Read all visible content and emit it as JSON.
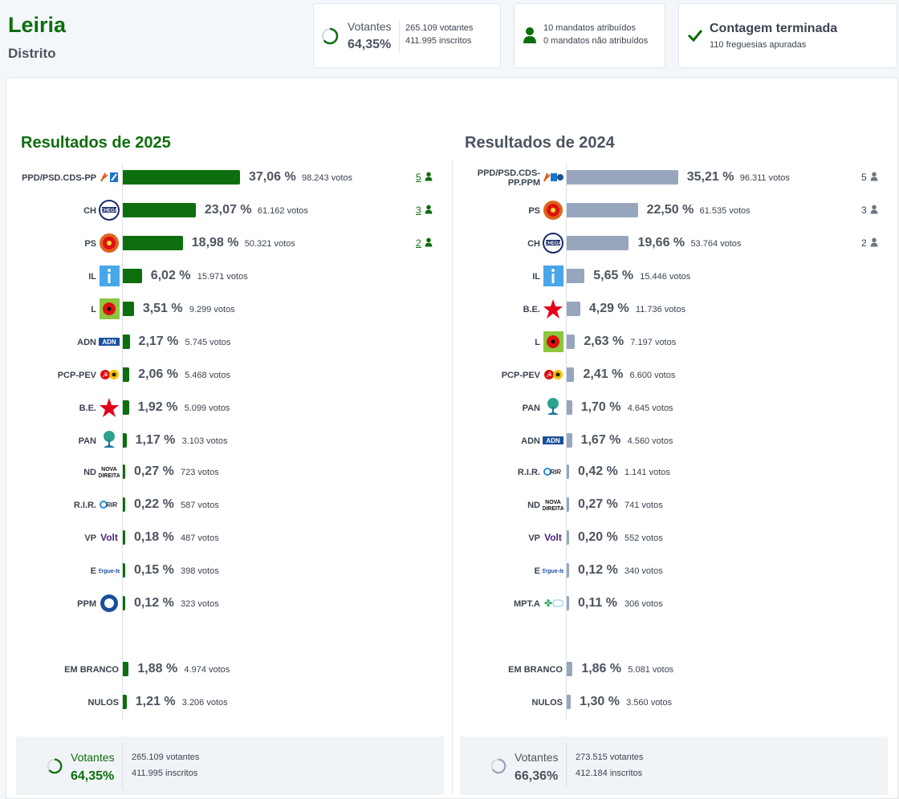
{
  "header": {
    "title": "Leiria",
    "subtitle": "Distrito",
    "turnout_label": "Votantes",
    "turnout_pct": "64,35%",
    "turnout_fraction": 0.6435,
    "voters": "265.109 votantes",
    "registered": "411.995 inscritos",
    "seats_assigned": "10 mandatos atribuídos",
    "seats_unassigned": "0 mandatos não atribuídos",
    "count_status": "Contagem terminada",
    "parishes": "110 freguesias apuradas"
  },
  "colors": {
    "green": "#0d6e0d",
    "gray_bar": "#97a6bd",
    "text": "#3a4350"
  },
  "chart_data": [
    {
      "type": "bar",
      "title": "Resultados de 2025",
      "series": [
        {
          "name": "2025",
          "values": [
            37.06,
            23.07,
            18.98,
            6.02,
            3.51,
            2.17,
            2.06,
            1.92,
            1.17,
            0.27,
            0.22,
            0.18,
            0.15,
            0.12
          ]
        }
      ],
      "rows": [
        {
          "party": "PPD/PSD.CDS-PP",
          "pct": "37,06 %",
          "votes": "98.243 votos",
          "value": 37.06,
          "seats": "5",
          "logo": "psd-cds-logo"
        },
        {
          "party": "CH",
          "pct": "23,07 %",
          "votes": "61.162 votos",
          "value": 23.07,
          "seats": "3",
          "logo": "chega-logo"
        },
        {
          "party": "PS",
          "pct": "18,98 %",
          "votes": "50.321 votos",
          "value": 18.98,
          "seats": "2",
          "logo": "ps-logo"
        },
        {
          "party": "IL",
          "pct": "6,02 %",
          "votes": "15.971 votos",
          "value": 6.02,
          "logo": "il-logo"
        },
        {
          "party": "L",
          "pct": "3,51 %",
          "votes": "9.299 votos",
          "value": 3.51,
          "logo": "livre-logo"
        },
        {
          "party": "ADN",
          "pct": "2,17 %",
          "votes": "5.745 votos",
          "value": 2.17,
          "logo": "adn-logo"
        },
        {
          "party": "PCP-PEV",
          "pct": "2,06 %",
          "votes": "5.468 votos",
          "value": 2.06,
          "logo": "pcp-pev-logo"
        },
        {
          "party": "B.E.",
          "pct": "1,92 %",
          "votes": "5.099 votos",
          "value": 1.92,
          "logo": "be-logo"
        },
        {
          "party": "PAN",
          "pct": "1,17 %",
          "votes": "3.103 votos",
          "value": 1.17,
          "logo": "pan-logo"
        },
        {
          "party": "ND",
          "pct": "0,27 %",
          "votes": "723 votos",
          "value": 0.27,
          "logo": "nd-logo"
        },
        {
          "party": "R.I.R.",
          "pct": "0,22 %",
          "votes": "587 votos",
          "value": 0.22,
          "logo": "rir-logo"
        },
        {
          "party": "VP",
          "pct": "0,18 %",
          "votes": "487 votos",
          "value": 0.18,
          "logo": "volt-logo"
        },
        {
          "party": "E",
          "pct": "0,15 %",
          "votes": "398 votos",
          "value": 0.15,
          "logo": "ergue-te-logo"
        },
        {
          "party": "PPM",
          "pct": "0,12 %",
          "votes": "323 votos",
          "value": 0.12,
          "logo": "ppm-logo"
        }
      ],
      "extra_rows": [
        {
          "party": "EM BRANCO",
          "pct": "1,88 %",
          "votes": "4.974 votos",
          "value": 1.88
        },
        {
          "party": "NULOS",
          "pct": "1,21 %",
          "votes": "3.206 votos",
          "value": 1.21
        }
      ],
      "footer": {
        "label": "Votantes",
        "pct": "64,35%",
        "fraction": 0.6435,
        "voters": "265.109 votantes",
        "registered": "411.995 inscritos"
      }
    },
    {
      "type": "bar",
      "title": "Resultados de 2024",
      "series": [
        {
          "name": "2024",
          "values": [
            35.21,
            22.5,
            19.66,
            5.65,
            4.29,
            2.63,
            2.41,
            1.7,
            1.67,
            0.42,
            0.27,
            0.2,
            0.12,
            0.11
          ]
        }
      ],
      "rows": [
        {
          "party": "PPD/PSD.CDS-PP.PPM",
          "pct": "35,21 %",
          "votes": "96.311 votos",
          "value": 35.21,
          "seats": "5",
          "logo": "psd-cds-ppm-logo"
        },
        {
          "party": "PS",
          "pct": "22,50 %",
          "votes": "61.535 votos",
          "value": 22.5,
          "seats": "3",
          "logo": "ps-logo"
        },
        {
          "party": "CH",
          "pct": "19,66 %",
          "votes": "53.764 votos",
          "value": 19.66,
          "seats": "2",
          "logo": "chega-logo"
        },
        {
          "party": "IL",
          "pct": "5,65 %",
          "votes": "15.446 votos",
          "value": 5.65,
          "logo": "il-logo"
        },
        {
          "party": "B.E.",
          "pct": "4,29 %",
          "votes": "11.736 votos",
          "value": 4.29,
          "logo": "be-logo"
        },
        {
          "party": "L",
          "pct": "2,63 %",
          "votes": "7.197 votos",
          "value": 2.63,
          "logo": "livre-logo"
        },
        {
          "party": "PCP-PEV",
          "pct": "2,41 %",
          "votes": "6.600 votos",
          "value": 2.41,
          "logo": "pcp-pev-logo"
        },
        {
          "party": "PAN",
          "pct": "1,70 %",
          "votes": "4.645 votos",
          "value": 1.7,
          "logo": "pan-logo"
        },
        {
          "party": "ADN",
          "pct": "1,67 %",
          "votes": "4.560 votos",
          "value": 1.67,
          "logo": "adn-logo"
        },
        {
          "party": "R.I.R.",
          "pct": "0,42 %",
          "votes": "1.141 votos",
          "value": 0.42,
          "logo": "rir-logo"
        },
        {
          "party": "ND",
          "pct": "0,27 %",
          "votes": "741 votos",
          "value": 0.27,
          "logo": "nd-logo"
        },
        {
          "party": "VP",
          "pct": "0,20 %",
          "votes": "552 votos",
          "value": 0.2,
          "logo": "volt-logo"
        },
        {
          "party": "E",
          "pct": "0,12 %",
          "votes": "340 votos",
          "value": 0.12,
          "logo": "ergue-te-logo"
        },
        {
          "party": "MPT.A",
          "pct": "0,11 %",
          "votes": "306 votos",
          "value": 0.11,
          "logo": "mpt-logo"
        }
      ],
      "extra_rows": [
        {
          "party": "EM BRANCO",
          "pct": "1,86 %",
          "votes": "5.081 votos",
          "value": 1.86
        },
        {
          "party": "NULOS",
          "pct": "1,30 %",
          "votes": "3.560 votos",
          "value": 1.3
        }
      ],
      "footer": {
        "label": "Votantes",
        "pct": "66,36%",
        "fraction": 0.6636,
        "voters": "273.515 votantes",
        "registered": "412.184 inscritos"
      }
    }
  ]
}
